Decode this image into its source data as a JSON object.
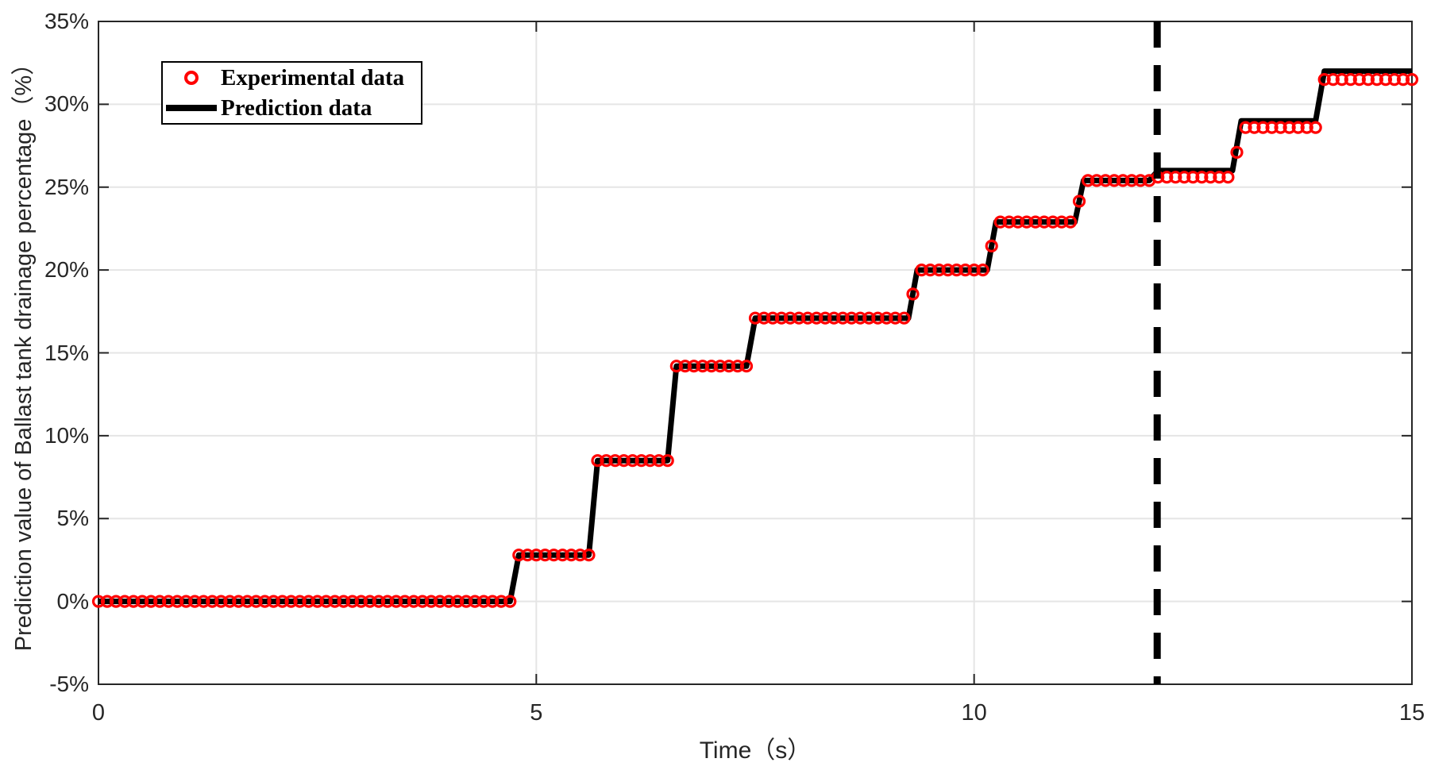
{
  "figure": {
    "background": "#ffffff",
    "frame_color": "#262626",
    "grid_color": "#e5e5e5"
  },
  "axes": {
    "xlabel": "Time（s）",
    "ylabel": "Prediction value of Ballast tank drainage percentage（%）",
    "x_ticks": [
      {
        "value": 0,
        "label": "0"
      },
      {
        "value": 5,
        "label": "5"
      },
      {
        "value": 10,
        "label": "10"
      },
      {
        "value": 15,
        "label": "15"
      }
    ],
    "y_ticks": [
      {
        "value": -5,
        "label": "-5%"
      },
      {
        "value": 0,
        "label": "0%"
      },
      {
        "value": 5,
        "label": "5%"
      },
      {
        "value": 10,
        "label": "10%"
      },
      {
        "value": 15,
        "label": "15%"
      },
      {
        "value": 20,
        "label": "20%"
      },
      {
        "value": 25,
        "label": "25%"
      },
      {
        "value": 30,
        "label": "30%"
      },
      {
        "value": 35,
        "label": "35%"
      }
    ]
  },
  "legend": {
    "items": [
      {
        "label": "Experimental data",
        "marker": "open-circle-icon",
        "color": "#ff0000"
      },
      {
        "label": "Prediction data",
        "marker": "line-swatch-icon",
        "color": "#000000"
      }
    ]
  },
  "chart_data": {
    "type": "line",
    "title": "",
    "xlabel": "Time（s）",
    "ylabel": "Prediction value of Ballast tank drainage percentage（%）",
    "xlim": [
      0,
      15
    ],
    "ylim": [
      -5,
      35
    ],
    "x_ticks": [
      0,
      5,
      10,
      15
    ],
    "y_ticks": [
      -5,
      0,
      5,
      10,
      15,
      20,
      25,
      30,
      35
    ],
    "y_unit": "percent",
    "grid": true,
    "legend_position": "top-left-inside",
    "annotation_vline": {
      "x": 12,
      "style": "dashed",
      "color": "#000000",
      "width": 9
    },
    "series": [
      {
        "name": "Experimental data",
        "style": "scatter",
        "marker": "open-circle",
        "color": "#ff0000",
        "sample_interval_s": 0.1,
        "steps_t_start_t_end_value": [
          [
            0.0,
            4.7,
            0.0
          ],
          [
            4.8,
            5.6,
            2.8
          ],
          [
            5.7,
            6.5,
            8.5
          ],
          [
            6.6,
            7.4,
            14.2
          ],
          [
            7.5,
            9.25,
            17.1
          ],
          [
            9.35,
            10.15,
            20.0
          ],
          [
            10.25,
            11.15,
            22.9
          ],
          [
            11.25,
            12.0,
            25.4
          ],
          [
            12.1,
            12.95,
            25.6
          ],
          [
            13.05,
            13.9,
            28.6
          ],
          [
            14.0,
            15.0,
            31.5
          ]
        ]
      },
      {
        "name": "Prediction data",
        "style": "line",
        "color": "#000000",
        "line_width": 7,
        "steps_t_start_t_end_value": [
          [
            0.0,
            4.7,
            0.0
          ],
          [
            4.8,
            5.6,
            2.8
          ],
          [
            5.7,
            6.5,
            8.5
          ],
          [
            6.6,
            7.4,
            14.2
          ],
          [
            7.5,
            9.25,
            17.1
          ],
          [
            9.35,
            10.15,
            20.0
          ],
          [
            10.25,
            11.15,
            22.9
          ],
          [
            11.25,
            12.0,
            25.4
          ],
          [
            12.1,
            12.95,
            26.0
          ],
          [
            13.05,
            13.9,
            29.0
          ],
          [
            14.0,
            15.0,
            32.0
          ]
        ]
      }
    ]
  }
}
